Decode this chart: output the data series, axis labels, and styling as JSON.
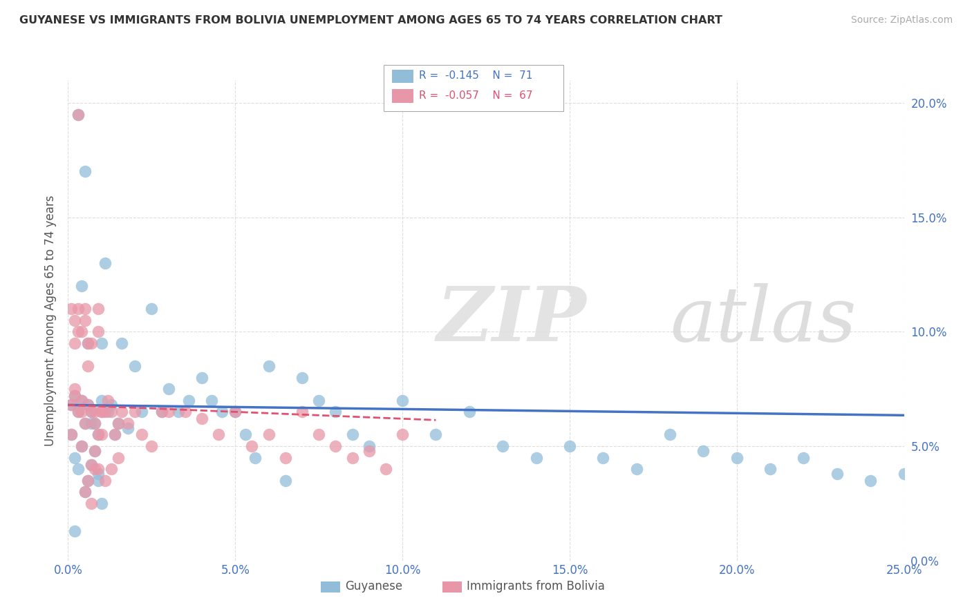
{
  "title": "GUYANESE VS IMMIGRANTS FROM BOLIVIA UNEMPLOYMENT AMONG AGES 65 TO 74 YEARS CORRELATION CHART",
  "source": "Source: ZipAtlas.com",
  "ylabel": "Unemployment Among Ages 65 to 74 years",
  "xlim": [
    0.0,
    0.25
  ],
  "ylim": [
    0.0,
    0.21
  ],
  "xticks": [
    0.0,
    0.05,
    0.1,
    0.15,
    0.2,
    0.25
  ],
  "yticks": [
    0.0,
    0.05,
    0.1,
    0.15,
    0.2
  ],
  "blue_color": "#92BDD9",
  "pink_color": "#E897A8",
  "blue_line_color": "#4472C4",
  "pink_line_color": "#E05070",
  "legend_r_blue": "-0.145",
  "legend_n_blue": "71",
  "legend_r_pink": "-0.057",
  "legend_n_pink": "67",
  "legend_label_blue": "Guyanese",
  "legend_label_pink": "Immigrants from Bolivia",
  "blue_slope": -0.018,
  "blue_intercept": 0.068,
  "pink_slope": -0.06,
  "pink_intercept": 0.068,
  "blue_x": [
    0.001,
    0.001,
    0.002,
    0.002,
    0.003,
    0.003,
    0.004,
    0.004,
    0.005,
    0.005,
    0.006,
    0.006,
    0.007,
    0.007,
    0.008,
    0.008,
    0.009,
    0.009,
    0.01,
    0.01,
    0.011,
    0.012,
    0.013,
    0.014,
    0.015,
    0.016,
    0.018,
    0.02,
    0.022,
    0.025,
    0.028,
    0.03,
    0.033,
    0.036,
    0.04,
    0.043,
    0.046,
    0.05,
    0.053,
    0.056,
    0.06,
    0.065,
    0.07,
    0.075,
    0.08,
    0.085,
    0.09,
    0.1,
    0.11,
    0.12,
    0.13,
    0.14,
    0.15,
    0.16,
    0.17,
    0.18,
    0.19,
    0.2,
    0.21,
    0.22,
    0.23,
    0.24,
    0.25,
    0.003,
    0.005,
    0.007,
    0.009,
    0.004,
    0.006,
    0.01,
    0.002
  ],
  "blue_y": [
    0.068,
    0.055,
    0.072,
    0.045,
    0.065,
    0.04,
    0.07,
    0.05,
    0.06,
    0.03,
    0.068,
    0.035,
    0.065,
    0.042,
    0.06,
    0.048,
    0.055,
    0.038,
    0.07,
    0.025,
    0.13,
    0.065,
    0.068,
    0.055,
    0.06,
    0.095,
    0.058,
    0.085,
    0.065,
    0.11,
    0.065,
    0.075,
    0.065,
    0.07,
    0.08,
    0.07,
    0.065,
    0.065,
    0.055,
    0.045,
    0.085,
    0.035,
    0.08,
    0.07,
    0.065,
    0.055,
    0.05,
    0.07,
    0.055,
    0.065,
    0.05,
    0.045,
    0.05,
    0.045,
    0.04,
    0.055,
    0.048,
    0.045,
    0.04,
    0.045,
    0.038,
    0.035,
    0.038,
    0.195,
    0.17,
    0.06,
    0.035,
    0.12,
    0.095,
    0.095,
    0.013
  ],
  "pink_x": [
    0.001,
    0.001,
    0.002,
    0.002,
    0.003,
    0.003,
    0.004,
    0.004,
    0.005,
    0.005,
    0.006,
    0.006,
    0.007,
    0.007,
    0.008,
    0.008,
    0.009,
    0.009,
    0.01,
    0.01,
    0.011,
    0.012,
    0.013,
    0.014,
    0.015,
    0.016,
    0.018,
    0.02,
    0.022,
    0.025,
    0.028,
    0.03,
    0.035,
    0.04,
    0.045,
    0.05,
    0.055,
    0.06,
    0.065,
    0.07,
    0.075,
    0.08,
    0.085,
    0.09,
    0.095,
    0.1,
    0.003,
    0.005,
    0.007,
    0.009,
    0.002,
    0.004,
    0.006,
    0.008,
    0.011,
    0.013,
    0.015,
    0.001,
    0.003,
    0.005,
    0.007,
    0.009,
    0.002,
    0.004,
    0.006,
    0.008,
    0.01
  ],
  "pink_y": [
    0.068,
    0.055,
    0.072,
    0.105,
    0.065,
    0.11,
    0.07,
    0.1,
    0.06,
    0.105,
    0.068,
    0.095,
    0.065,
    0.042,
    0.06,
    0.048,
    0.055,
    0.11,
    0.055,
    0.065,
    0.065,
    0.07,
    0.065,
    0.055,
    0.06,
    0.065,
    0.06,
    0.065,
    0.055,
    0.05,
    0.065,
    0.065,
    0.065,
    0.062,
    0.055,
    0.065,
    0.05,
    0.055,
    0.045,
    0.065,
    0.055,
    0.05,
    0.045,
    0.048,
    0.04,
    0.055,
    0.195,
    0.03,
    0.025,
    0.04,
    0.075,
    0.05,
    0.035,
    0.04,
    0.035,
    0.04,
    0.045,
    0.11,
    0.1,
    0.11,
    0.095,
    0.1,
    0.095,
    0.065,
    0.085,
    0.065,
    0.065
  ]
}
